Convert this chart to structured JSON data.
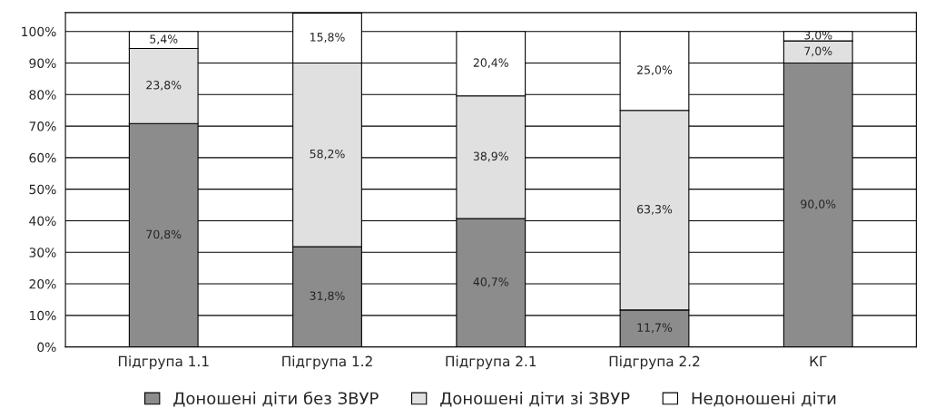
{
  "chart_data": {
    "type": "bar",
    "stacked": true,
    "categories": [
      "Підгрупа 1.1",
      "Підгрупа 1.2",
      "Підгрупа 2.1",
      "Підгрупа 2.2",
      "КГ"
    ],
    "series": [
      {
        "name": "Доношені діти без ЗВУР",
        "color": "#8c8c8c",
        "values": [
          70.8,
          31.8,
          40.7,
          11.7,
          90.0
        ],
        "value_labels": [
          "70,8%",
          "31,8%",
          "40,7%",
          "11,7%",
          "90,0%"
        ]
      },
      {
        "name": "Доношені діти зі ЗВУР",
        "color": "#e0e0e0",
        "values": [
          23.8,
          58.2,
          38.9,
          63.3,
          7.0
        ],
        "value_labels": [
          "23,8%",
          "58,2%",
          "38,9%",
          "63,3%",
          "7,0%"
        ]
      },
      {
        "name": "Недоношені діти",
        "color": "#ffffff",
        "values": [
          5.4,
          15.8,
          20.4,
          25.0,
          3.0
        ],
        "value_labels": [
          "5,4%",
          "15,8%",
          "20,4%",
          "25,0%",
          "3,0%"
        ]
      }
    ],
    "ylim": [
      0,
      106
    ],
    "yticks": [
      {
        "value": 0,
        "label": "0%"
      },
      {
        "value": 10,
        "label": "10%"
      },
      {
        "value": 20,
        "label": "20%"
      },
      {
        "value": 30,
        "label": "30%"
      },
      {
        "value": 40,
        "label": "40%"
      },
      {
        "value": 50,
        "label": "50%"
      },
      {
        "value": 60,
        "label": "60%"
      },
      {
        "value": 70,
        "label": "70%"
      },
      {
        "value": 80,
        "label": "80%"
      },
      {
        "value": 90,
        "label": "90%"
      },
      {
        "value": 100,
        "label": "100%"
      }
    ],
    "grid": "y",
    "legend": "bottom"
  }
}
